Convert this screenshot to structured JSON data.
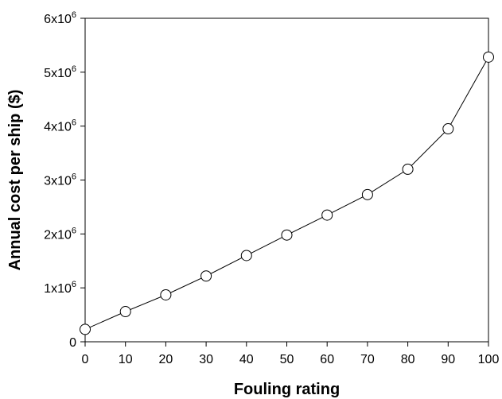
{
  "chart_data": {
    "type": "line",
    "title": "",
    "xlabel": "Fouling rating",
    "ylabel": "Annual cost per ship ($)",
    "xlim": [
      0,
      100
    ],
    "ylim": [
      0,
      6000000
    ],
    "x_ticks": [
      0,
      10,
      20,
      30,
      40,
      50,
      60,
      70,
      80,
      90,
      100
    ],
    "y_ticks": [
      {
        "value": 0,
        "base": "0",
        "exp": ""
      },
      {
        "value": 1000000,
        "base": "1x10",
        "exp": "6"
      },
      {
        "value": 2000000,
        "base": "2x10",
        "exp": "6"
      },
      {
        "value": 3000000,
        "base": "3x10",
        "exp": "6"
      },
      {
        "value": 4000000,
        "base": "4x10",
        "exp": "6"
      },
      {
        "value": 5000000,
        "base": "5x10",
        "exp": "6"
      },
      {
        "value": 6000000,
        "base": "6x10",
        "exp": "6"
      }
    ],
    "grid": false,
    "legend": "none",
    "marker": "open-circle",
    "series": [
      {
        "x": [
          0,
          10,
          20,
          30,
          40,
          50,
          60,
          70,
          80,
          90,
          100
        ],
        "values": [
          230000,
          560000,
          870000,
          1220000,
          1600000,
          1980000,
          2350000,
          2730000,
          3200000,
          3950000,
          5280000
        ]
      }
    ]
  }
}
